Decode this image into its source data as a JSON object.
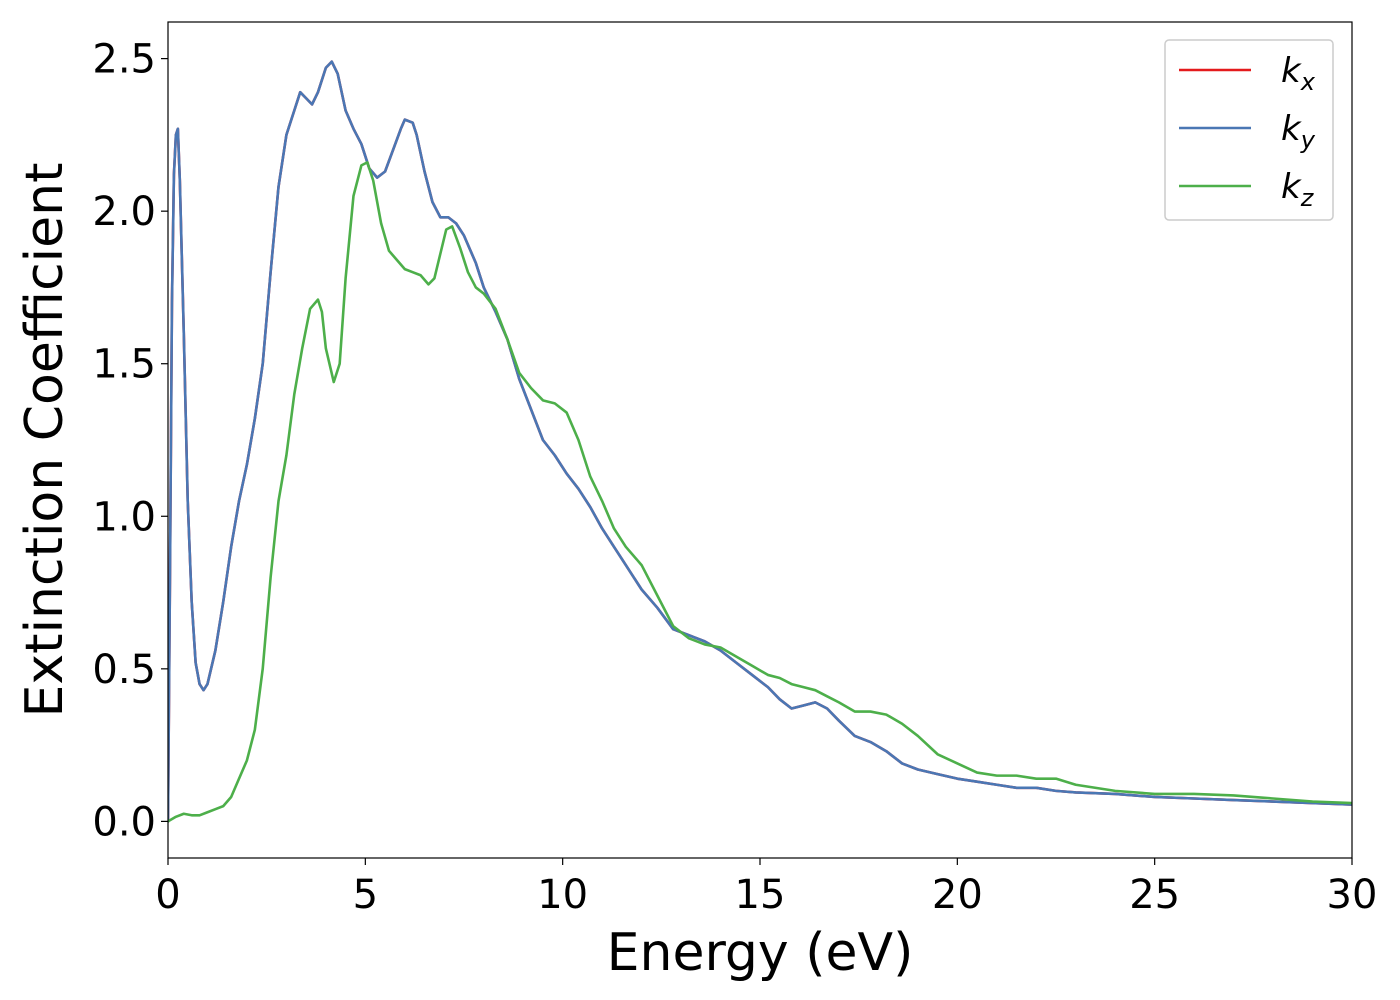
{
  "chart_data": {
    "type": "line",
    "title": "",
    "xlabel": "Energy (eV)",
    "ylabel": "Extinction Coefficient",
    "xlim": [
      0,
      30
    ],
    "ylim": [
      -0.12,
      2.62
    ],
    "xticks": [
      0,
      5,
      10,
      15,
      20,
      25,
      30
    ],
    "xtick_labels": [
      "0",
      "5",
      "10",
      "15",
      "20",
      "25",
      "30"
    ],
    "yticks": [
      0.0,
      0.5,
      1.0,
      1.5,
      2.0,
      2.5
    ],
    "ytick_labels": [
      "0.0",
      "0.5",
      "1.0",
      "1.5",
      "2.0",
      "2.5"
    ],
    "grid": false,
    "legend_position": "top-right",
    "series": [
      {
        "name": "k_x",
        "legend_base": "k",
        "legend_sub": "x",
        "color": "#e41a1c",
        "x": [
          0.0,
          0.05,
          0.1,
          0.15,
          0.2,
          0.25,
          0.3,
          0.4,
          0.5,
          0.6,
          0.7,
          0.8,
          0.9,
          1.0,
          1.2,
          1.4,
          1.6,
          1.8,
          2.0,
          2.2,
          2.4,
          2.6,
          2.8,
          3.0,
          3.2,
          3.35,
          3.5,
          3.65,
          3.8,
          4.0,
          4.15,
          4.3,
          4.5,
          4.7,
          4.9,
          5.1,
          5.3,
          5.5,
          5.7,
          5.9,
          6.0,
          6.2,
          6.3,
          6.5,
          6.7,
          6.9,
          7.1,
          7.3,
          7.5,
          7.8,
          8.0,
          8.3,
          8.6,
          8.9,
          9.2,
          9.5,
          9.8,
          10.1,
          10.4,
          10.7,
          11.0,
          11.3,
          11.6,
          12.0,
          12.4,
          12.8,
          13.2,
          13.6,
          14.0,
          14.4,
          14.8,
          15.2,
          15.5,
          15.8,
          16.1,
          16.4,
          16.7,
          17.0,
          17.4,
          17.8,
          18.2,
          18.6,
          19.0,
          19.5,
          20.0,
          20.5,
          21.0,
          21.5,
          22.0,
          22.5,
          23.0,
          24.0,
          25.0,
          26.0,
          27.0,
          28.0,
          29.0,
          30.0
        ],
        "y": [
          0.0,
          0.8,
          1.7,
          2.12,
          2.25,
          2.27,
          2.1,
          1.6,
          1.05,
          0.72,
          0.52,
          0.45,
          0.43,
          0.45,
          0.56,
          0.72,
          0.9,
          1.05,
          1.17,
          1.32,
          1.5,
          1.8,
          2.08,
          2.25,
          2.33,
          2.39,
          2.37,
          2.35,
          2.39,
          2.47,
          2.49,
          2.45,
          2.33,
          2.27,
          2.22,
          2.14,
          2.11,
          2.13,
          2.2,
          2.27,
          2.3,
          2.29,
          2.25,
          2.13,
          2.03,
          1.98,
          1.98,
          1.96,
          1.92,
          1.83,
          1.75,
          1.67,
          1.58,
          1.45,
          1.35,
          1.25,
          1.2,
          1.14,
          1.09,
          1.03,
          0.96,
          0.9,
          0.84,
          0.76,
          0.7,
          0.63,
          0.61,
          0.59,
          0.56,
          0.52,
          0.48,
          0.44,
          0.4,
          0.37,
          0.38,
          0.39,
          0.37,
          0.33,
          0.28,
          0.26,
          0.23,
          0.19,
          0.17,
          0.155,
          0.14,
          0.13,
          0.12,
          0.11,
          0.11,
          0.1,
          0.095,
          0.09,
          0.08,
          0.075,
          0.07,
          0.065,
          0.06,
          0.055
        ]
      },
      {
        "name": "k_y",
        "legend_base": "k",
        "legend_sub": "y",
        "color": "#4a77b4",
        "x": [
          0.0,
          0.05,
          0.1,
          0.15,
          0.2,
          0.25,
          0.3,
          0.4,
          0.5,
          0.6,
          0.7,
          0.8,
          0.9,
          1.0,
          1.2,
          1.4,
          1.6,
          1.8,
          2.0,
          2.2,
          2.4,
          2.6,
          2.8,
          3.0,
          3.2,
          3.35,
          3.5,
          3.65,
          3.8,
          4.0,
          4.15,
          4.3,
          4.5,
          4.7,
          4.9,
          5.1,
          5.3,
          5.5,
          5.7,
          5.9,
          6.0,
          6.2,
          6.3,
          6.5,
          6.7,
          6.9,
          7.1,
          7.3,
          7.5,
          7.8,
          8.0,
          8.3,
          8.6,
          8.9,
          9.2,
          9.5,
          9.8,
          10.1,
          10.4,
          10.7,
          11.0,
          11.3,
          11.6,
          12.0,
          12.4,
          12.8,
          13.2,
          13.6,
          14.0,
          14.4,
          14.8,
          15.2,
          15.5,
          15.8,
          16.1,
          16.4,
          16.7,
          17.0,
          17.4,
          17.8,
          18.2,
          18.6,
          19.0,
          19.5,
          20.0,
          20.5,
          21.0,
          21.5,
          22.0,
          22.5,
          23.0,
          24.0,
          25.0,
          26.0,
          27.0,
          28.0,
          29.0,
          30.0
        ],
        "y": [
          0.0,
          0.8,
          1.7,
          2.12,
          2.25,
          2.27,
          2.1,
          1.6,
          1.05,
          0.72,
          0.52,
          0.45,
          0.43,
          0.45,
          0.56,
          0.72,
          0.9,
          1.05,
          1.17,
          1.32,
          1.5,
          1.8,
          2.08,
          2.25,
          2.33,
          2.39,
          2.37,
          2.35,
          2.39,
          2.47,
          2.49,
          2.45,
          2.33,
          2.27,
          2.22,
          2.14,
          2.11,
          2.13,
          2.2,
          2.27,
          2.3,
          2.29,
          2.25,
          2.13,
          2.03,
          1.98,
          1.98,
          1.96,
          1.92,
          1.83,
          1.75,
          1.67,
          1.58,
          1.45,
          1.35,
          1.25,
          1.2,
          1.14,
          1.09,
          1.03,
          0.96,
          0.9,
          0.84,
          0.76,
          0.7,
          0.63,
          0.61,
          0.59,
          0.56,
          0.52,
          0.48,
          0.44,
          0.4,
          0.37,
          0.38,
          0.39,
          0.37,
          0.33,
          0.28,
          0.26,
          0.23,
          0.19,
          0.17,
          0.155,
          0.14,
          0.13,
          0.12,
          0.11,
          0.11,
          0.1,
          0.095,
          0.09,
          0.08,
          0.075,
          0.07,
          0.065,
          0.06,
          0.055
        ]
      },
      {
        "name": "k_z",
        "legend_base": "k",
        "legend_sub": "z",
        "color": "#4daf4a",
        "x": [
          0.0,
          0.2,
          0.4,
          0.6,
          0.8,
          1.0,
          1.2,
          1.4,
          1.6,
          1.8,
          2.0,
          2.2,
          2.4,
          2.6,
          2.8,
          3.0,
          3.2,
          3.4,
          3.6,
          3.8,
          3.9,
          4.0,
          4.2,
          4.35,
          4.5,
          4.7,
          4.9,
          5.05,
          5.2,
          5.4,
          5.6,
          5.8,
          6.0,
          6.2,
          6.4,
          6.6,
          6.75,
          6.9,
          7.05,
          7.2,
          7.4,
          7.6,
          7.8,
          8.0,
          8.3,
          8.6,
          8.9,
          9.2,
          9.5,
          9.8,
          10.1,
          10.4,
          10.7,
          11.0,
          11.3,
          11.6,
          12.0,
          12.4,
          12.8,
          13.2,
          13.6,
          14.0,
          14.4,
          14.8,
          15.2,
          15.5,
          15.8,
          16.1,
          16.4,
          16.7,
          17.0,
          17.4,
          17.8,
          18.2,
          18.6,
          19.0,
          19.5,
          20.0,
          20.5,
          21.0,
          21.5,
          22.0,
          22.5,
          23.0,
          24.0,
          25.0,
          26.0,
          27.0,
          28.0,
          29.0,
          30.0
        ],
        "y": [
          0.0,
          0.015,
          0.025,
          0.02,
          0.02,
          0.03,
          0.04,
          0.05,
          0.08,
          0.14,
          0.2,
          0.3,
          0.5,
          0.8,
          1.05,
          1.2,
          1.4,
          1.55,
          1.68,
          1.71,
          1.67,
          1.55,
          1.44,
          1.5,
          1.78,
          2.05,
          2.15,
          2.16,
          2.1,
          1.96,
          1.87,
          1.84,
          1.81,
          1.8,
          1.79,
          1.76,
          1.78,
          1.86,
          1.94,
          1.95,
          1.88,
          1.8,
          1.75,
          1.73,
          1.68,
          1.58,
          1.47,
          1.42,
          1.38,
          1.37,
          1.34,
          1.25,
          1.13,
          1.05,
          0.96,
          0.9,
          0.84,
          0.74,
          0.64,
          0.6,
          0.58,
          0.57,
          0.54,
          0.51,
          0.48,
          0.47,
          0.45,
          0.44,
          0.43,
          0.41,
          0.39,
          0.36,
          0.36,
          0.35,
          0.32,
          0.28,
          0.22,
          0.19,
          0.16,
          0.15,
          0.15,
          0.14,
          0.14,
          0.12,
          0.1,
          0.09,
          0.09,
          0.085,
          0.075,
          0.065,
          0.06
        ]
      }
    ]
  }
}
